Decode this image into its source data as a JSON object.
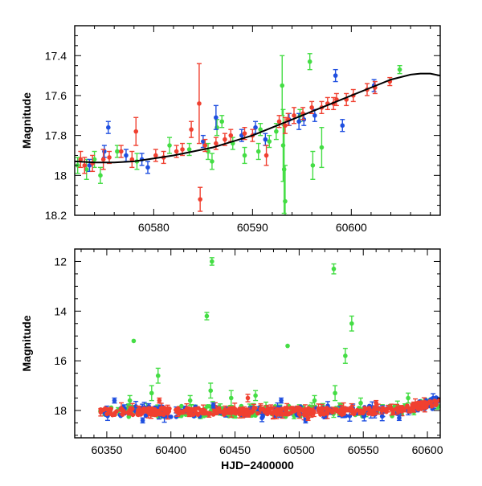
{
  "chart_data": [
    {
      "id": "top",
      "type": "scatter",
      "title": "",
      "xlabel": "",
      "ylabel": "Magnitude",
      "xlim": [
        60572,
        60609
      ],
      "ylim": [
        18.2,
        17.25
      ],
      "y_inverted": true,
      "xticks": [
        60580,
        60590,
        60600
      ],
      "yticks": [
        17.4,
        17.6,
        17.8,
        18,
        18.2
      ],
      "xtick_labels": [
        "60580",
        "60590",
        "60600"
      ],
      "ytick_labels": [
        "17.4",
        "17.6",
        "17.8",
        "18",
        "18.2"
      ],
      "grid": false,
      "legend": "none",
      "colors": {
        "green": "#44dd44",
        "blue": "#1f4fe0",
        "red": "#f04030",
        "model": "#000000"
      },
      "model_curve": {
        "x": [
          60572,
          60574,
          60576,
          60578,
          60580,
          60582,
          60584,
          60586,
          60588,
          60590,
          60592,
          60594,
          60596,
          60598,
          60600,
          60602,
          60604,
          60606,
          60607,
          60608,
          60609
        ],
        "y": [
          17.93,
          17.935,
          17.935,
          17.93,
          17.915,
          17.9,
          17.88,
          17.86,
          17.83,
          17.8,
          17.76,
          17.72,
          17.68,
          17.64,
          17.6,
          17.56,
          17.52,
          17.495,
          17.49,
          17.49,
          17.5
        ]
      },
      "series": [
        {
          "color": "green",
          "points": [
            [
              60572.3,
              17.95,
              0.04
            ],
            [
              60573.2,
              17.97,
              0.05
            ],
            [
              60574.0,
              17.92,
              0.04
            ],
            [
              60574.6,
              18.0,
              0.04
            ],
            [
              60576.3,
              17.88,
              0.03
            ],
            [
              60578.3,
              17.93,
              0.04
            ],
            [
              60581.6,
              17.85,
              0.04
            ],
            [
              60583.6,
              17.87,
              0.03
            ],
            [
              60585.5,
              17.88,
              0.04
            ],
            [
              60585.9,
              17.93,
              0.04
            ],
            [
              60586.4,
              17.76,
              0.04
            ],
            [
              60586.9,
              17.73,
              0.03
            ],
            [
              60588.0,
              17.84,
              0.03
            ],
            [
              60589.2,
              17.9,
              0.04
            ],
            [
              60590.6,
              17.88,
              0.04
            ],
            [
              60590.8,
              17.77,
              0.03
            ],
            [
              60591.7,
              17.83,
              0.03
            ],
            [
              60592.4,
              17.78,
              0.04
            ],
            [
              60593.0,
              17.55,
              0.15
            ],
            [
              60593.1,
              17.85,
              0.18
            ],
            [
              60593.2,
              17.97,
              0.22
            ],
            [
              60593.3,
              18.13,
              0.18
            ],
            [
              60594.8,
              17.7,
              0.03
            ],
            [
              60595.8,
              17.43,
              0.04
            ],
            [
              60596.1,
              17.95,
              0.07
            ],
            [
              60597.0,
              17.86,
              0.1
            ],
            [
              60604.9,
              17.47,
              0.02
            ]
          ]
        },
        {
          "color": "blue",
          "points": [
            [
              60573.5,
              17.95,
              0.03
            ],
            [
              60575.0,
              17.88,
              0.03
            ],
            [
              60575.4,
              17.76,
              0.03
            ],
            [
              60577.2,
              17.9,
              0.03
            ],
            [
              60578.8,
              17.92,
              0.03
            ],
            [
              60579.4,
              17.96,
              0.03
            ],
            [
              60585.0,
              17.83,
              0.03
            ],
            [
              60586.3,
              17.71,
              0.06
            ],
            [
              60588.9,
              17.8,
              0.03
            ],
            [
              60590.3,
              17.76,
              0.03
            ],
            [
              60591.3,
              17.82,
              0.03
            ],
            [
              60593.7,
              17.72,
              0.03
            ],
            [
              60594.7,
              17.73,
              0.04
            ],
            [
              60595.2,
              17.72,
              0.03
            ],
            [
              60596.3,
              17.7,
              0.03
            ],
            [
              60598.4,
              17.5,
              0.03
            ],
            [
              60599.1,
              17.75,
              0.03
            ],
            [
              60602.3,
              17.55,
              0.03
            ]
          ]
        },
        {
          "color": "red",
          "points": [
            [
              60572.6,
              17.92,
              0.04
            ],
            [
              60573.0,
              17.95,
              0.04
            ],
            [
              60573.8,
              17.94,
              0.04
            ],
            [
              60574.9,
              17.92,
              0.05
            ],
            [
              60575.5,
              17.91,
              0.03
            ],
            [
              60576.7,
              17.88,
              0.03
            ],
            [
              60577.8,
              17.92,
              0.04
            ],
            [
              60578.2,
              17.78,
              0.07
            ],
            [
              60580.2,
              17.9,
              0.03
            ],
            [
              60581.0,
              17.91,
              0.03
            ],
            [
              60582.3,
              17.88,
              0.03
            ],
            [
              60582.9,
              17.87,
              0.03
            ],
            [
              60583.8,
              17.77,
              0.04
            ],
            [
              60584.6,
              17.64,
              0.2
            ],
            [
              60584.7,
              18.12,
              0.06
            ],
            [
              60585.2,
              17.85,
              0.03
            ],
            [
              60586.3,
              17.84,
              0.03
            ],
            [
              60587.2,
              17.82,
              0.03
            ],
            [
              60587.8,
              17.8,
              0.03
            ],
            [
              60589.2,
              17.79,
              0.03
            ],
            [
              60590.0,
              17.8,
              0.03
            ],
            [
              60591.4,
              17.9,
              0.05
            ],
            [
              60592.7,
              17.73,
              0.03
            ],
            [
              60593.3,
              17.75,
              0.04
            ],
            [
              60593.6,
              17.72,
              0.03
            ],
            [
              60594.2,
              17.7,
              0.04
            ],
            [
              60595.1,
              17.69,
              0.03
            ],
            [
              60596.0,
              17.66,
              0.03
            ],
            [
              60597.0,
              17.66,
              0.03
            ],
            [
              60597.6,
              17.64,
              0.03
            ],
            [
              60598.2,
              17.64,
              0.03
            ],
            [
              60598.5,
              17.62,
              0.03
            ],
            [
              60599.5,
              17.62,
              0.03
            ],
            [
              60600.2,
              17.6,
              0.03
            ],
            [
              60601.6,
              17.57,
              0.03
            ],
            [
              60602.4,
              17.56,
              0.03
            ],
            [
              60603.9,
              17.53,
              0.02
            ]
          ]
        }
      ]
    },
    {
      "id": "bottom",
      "type": "scatter",
      "title": "",
      "xlabel": "HJD−2400000",
      "ylabel": "Magnitude",
      "xlim": [
        60325,
        60610
      ],
      "ylim": [
        19.1,
        11.5
      ],
      "y_inverted": true,
      "xticks": [
        60350,
        60400,
        60450,
        60500,
        60550,
        60600
      ],
      "yticks": [
        12,
        14,
        16,
        18
      ],
      "xtick_labels": [
        "60350",
        "60400",
        "60450",
        "60500",
        "60550",
        "60600"
      ],
      "ytick_labels": [
        "12",
        "14",
        "16",
        "18"
      ],
      "grid": false,
      "legend": "none",
      "colors": {
        "green": "#44dd44",
        "blue": "#1f4fe0",
        "red": "#f04030"
      },
      "outliers": {
        "green": [
          [
            60371,
            15.2,
            0
          ],
          [
            60390,
            16.6,
            0.3
          ],
          [
            60428,
            14.2,
            0.15
          ],
          [
            60432,
            12.0,
            0.15
          ],
          [
            60491,
            15.4,
            0
          ],
          [
            60527,
            12.3,
            0.2
          ],
          [
            60536,
            15.8,
            0.3
          ],
          [
            60541,
            14.5,
            0.3
          ],
          [
            60368,
            17.6,
            0.2
          ],
          [
            60385,
            17.3,
            0.3
          ],
          [
            60415,
            17.6,
            0.2
          ],
          [
            60431,
            17.2,
            0.3
          ],
          [
            60447,
            17.5,
            0.3
          ],
          [
            60466,
            17.4,
            0.2
          ],
          [
            60512,
            17.6,
            0.2
          ],
          [
            60528,
            17.3,
            0.3
          ],
          [
            60548,
            17.7,
            0.2
          ],
          [
            60585,
            17.5,
            0.2
          ]
        ],
        "blue": [
          [
            60356,
            17.6,
            0.1
          ],
          [
            60378,
            18.4,
            0.1
          ],
          [
            60433,
            17.8,
            0.1
          ],
          [
            60471,
            18.3,
            0.15
          ],
          [
            60486,
            17.6,
            0.1
          ],
          [
            60505,
            18.4,
            0.1
          ],
          [
            60578,
            18.3,
            0.1
          ]
        ],
        "red": [
          [
            60391,
            17.6,
            0.1
          ],
          [
            60460,
            17.5,
            0.15
          ],
          [
            60507,
            18.3,
            0.1
          ],
          [
            60560,
            17.7,
            0.1
          ],
          [
            60579,
            17.9,
            0.1
          ]
        ]
      }
    }
  ]
}
